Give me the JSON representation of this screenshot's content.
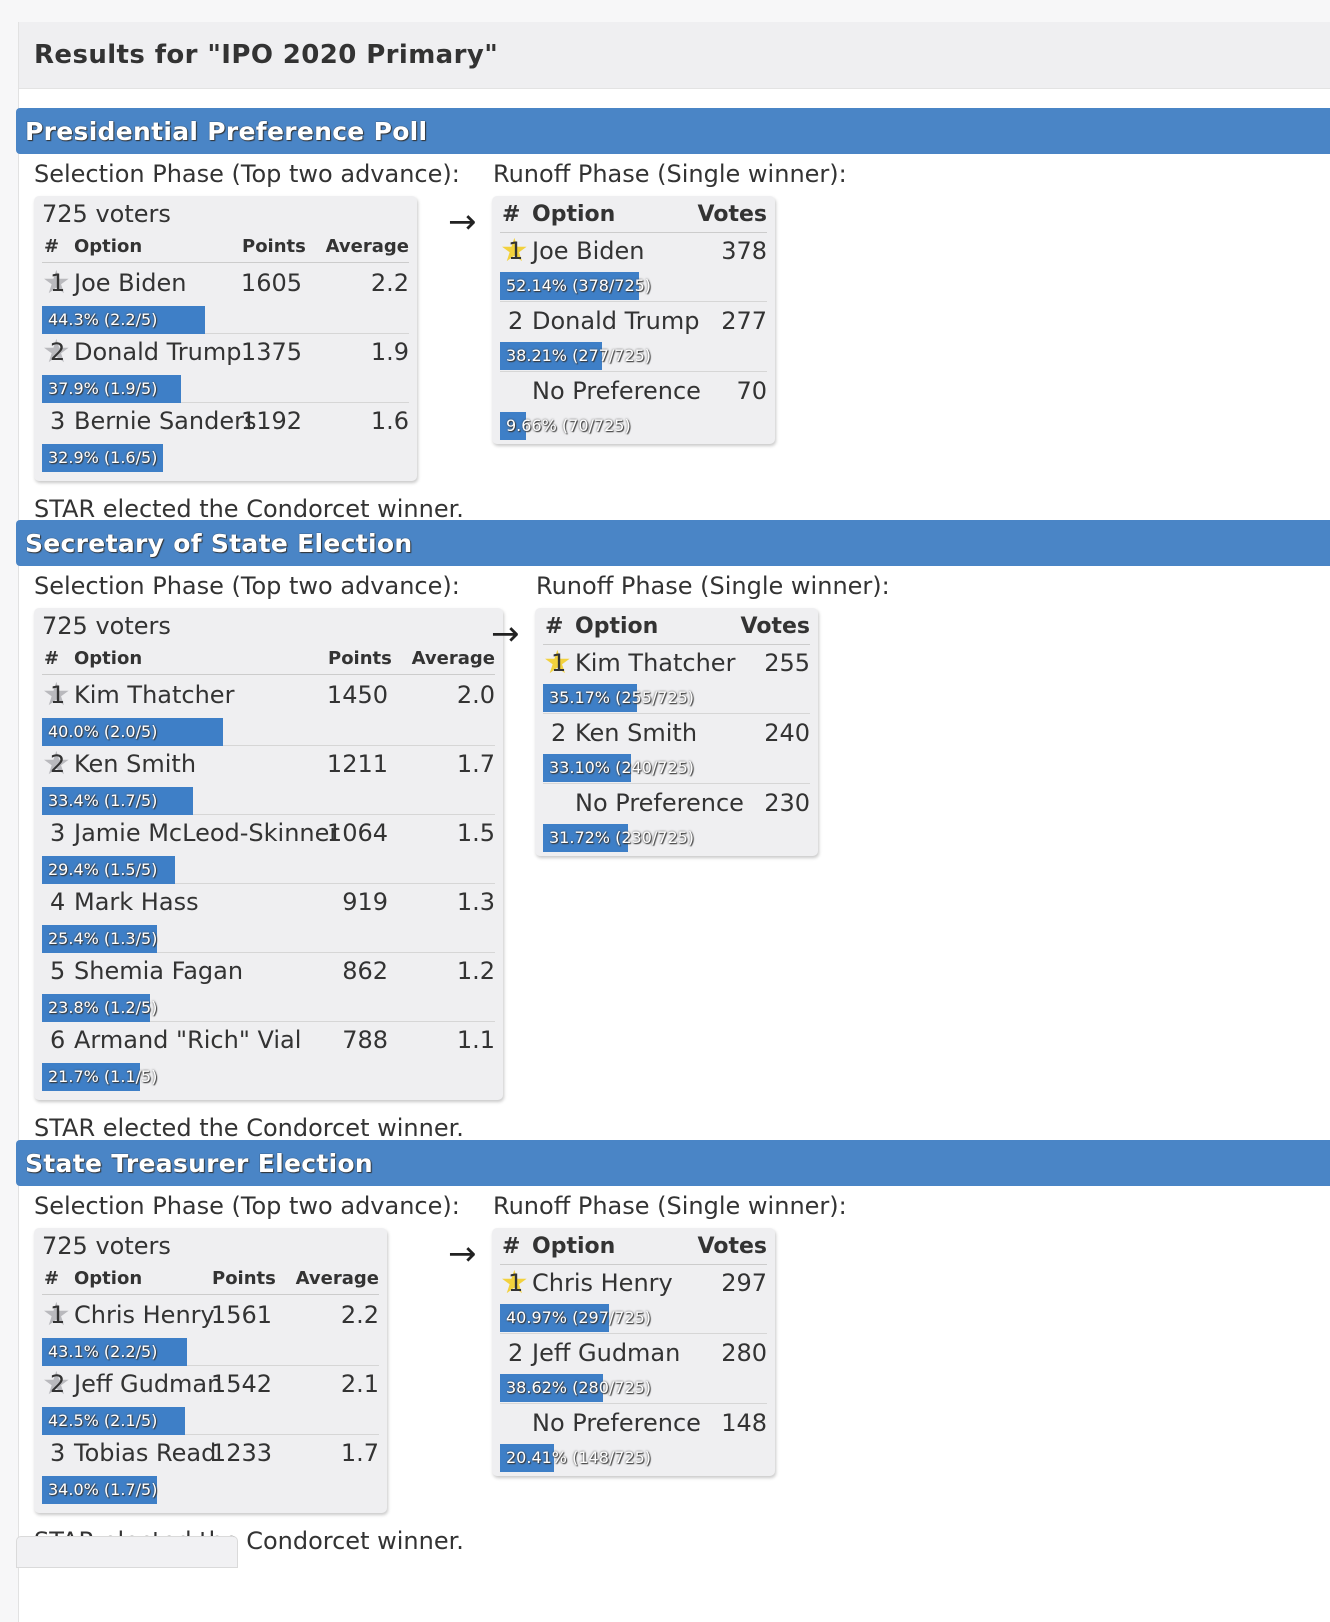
{
  "page": {
    "title": "Results for \"IPO 2020 Primary\""
  },
  "elections": [
    {
      "name": "Presidential Preference Poll",
      "selection_label": "Selection Phase (Top two advance):",
      "runoff_label": "Runoff Phase (Single winner):",
      "voters_text": "725 voters",
      "headers": {
        "rank": "#",
        "option": "Option",
        "points": "Points",
        "average": "Average"
      },
      "candidates": [
        {
          "rank": "1",
          "name": "Joe Biden",
          "points": "1605",
          "average": "2.2",
          "bar_text": "44.3% (2.2/5)",
          "pct": 44.3
        },
        {
          "rank": "2",
          "name": "Donald Trump",
          "points": "1375",
          "average": "1.9",
          "bar_text": "37.9% (1.9/5)",
          "pct": 37.9
        },
        {
          "rank": "3",
          "name": "Bernie Sanders",
          "points": "1192",
          "average": "1.6",
          "bar_text": "32.9% (1.6/5)",
          "pct": 32.9
        }
      ],
      "runoff_headers": {
        "rank": "#",
        "option": "Option",
        "votes": "Votes"
      },
      "runoff": [
        {
          "rank": "1",
          "name": "Joe Biden",
          "votes": "378",
          "bar_text": "52.14% (378/725)",
          "pct": 52.14
        },
        {
          "rank": "2",
          "name": "Donald Trump",
          "votes": "277",
          "bar_text": "38.21% (277/725)",
          "pct": 38.21
        },
        {
          "rank": "",
          "name": "No Preference",
          "votes": "70",
          "bar_text": "9.66% (70/725)",
          "pct": 9.66
        }
      ],
      "verdict": "STAR elected the Condorcet winner."
    },
    {
      "name": "Secretary of State Election",
      "selection_label": "Selection Phase (Top two advance):",
      "runoff_label": "Runoff Phase (Single winner):",
      "voters_text": "725 voters",
      "headers": {
        "rank": "#",
        "option": "Option",
        "points": "Points",
        "average": "Average"
      },
      "candidates": [
        {
          "rank": "1",
          "name": "Kim Thatcher",
          "points": "1450",
          "average": "2.0",
          "bar_text": "40.0% (2.0/5)",
          "pct": 40.0
        },
        {
          "rank": "2",
          "name": "Ken Smith",
          "points": "1211",
          "average": "1.7",
          "bar_text": "33.4% (1.7/5)",
          "pct": 33.4
        },
        {
          "rank": "3",
          "name": "Jamie McLeod-Skinner",
          "points": "1064",
          "average": "1.5",
          "bar_text": "29.4% (1.5/5)",
          "pct": 29.4
        },
        {
          "rank": "4",
          "name": "Mark Hass",
          "points": "919",
          "average": "1.3",
          "bar_text": "25.4% (1.3/5)",
          "pct": 25.4
        },
        {
          "rank": "5",
          "name": "Shemia Fagan",
          "points": "862",
          "average": "1.2",
          "bar_text": "23.8% (1.2/5)",
          "pct": 23.8
        },
        {
          "rank": "6",
          "name": "Armand \"Rich\" Vial",
          "points": "788",
          "average": "1.1",
          "bar_text": "21.7% (1.1/5)",
          "pct": 21.7
        }
      ],
      "runoff_headers": {
        "rank": "#",
        "option": "Option",
        "votes": "Votes"
      },
      "runoff": [
        {
          "rank": "1",
          "name": "Kim Thatcher",
          "votes": "255",
          "bar_text": "35.17% (255/725)",
          "pct": 35.17
        },
        {
          "rank": "2",
          "name": "Ken Smith",
          "votes": "240",
          "bar_text": "33.10% (240/725)",
          "pct": 33.1
        },
        {
          "rank": "",
          "name": "No Preference",
          "votes": "230",
          "bar_text": "31.72% (230/725)",
          "pct": 31.72
        }
      ],
      "verdict": "STAR elected the Condorcet winner."
    },
    {
      "name": "State Treasurer Election",
      "selection_label": "Selection Phase (Top two advance):",
      "runoff_label": "Runoff Phase (Single winner):",
      "voters_text": "725 voters",
      "headers": {
        "rank": "#",
        "option": "Option",
        "points": "Points",
        "average": "Average"
      },
      "candidates": [
        {
          "rank": "1",
          "name": "Chris Henry",
          "points": "1561",
          "average": "2.2",
          "bar_text": "43.1% (2.2/5)",
          "pct": 43.1
        },
        {
          "rank": "2",
          "name": "Jeff Gudman",
          "points": "1542",
          "average": "2.1",
          "bar_text": "42.5% (2.1/5)",
          "pct": 42.5
        },
        {
          "rank": "3",
          "name": "Tobias Read",
          "points": "1233",
          "average": "1.7",
          "bar_text": "34.0% (1.7/5)",
          "pct": 34.0
        }
      ],
      "runoff_headers": {
        "rank": "#",
        "option": "Option",
        "votes": "Votes"
      },
      "runoff": [
        {
          "rank": "1",
          "name": "Chris Henry",
          "votes": "297",
          "bar_text": "40.97% (297/725)",
          "pct": 40.97
        },
        {
          "rank": "2",
          "name": "Jeff Gudman",
          "votes": "280",
          "bar_text": "38.62% (280/725)",
          "pct": 38.62
        },
        {
          "rank": "",
          "name": "No Preference",
          "votes": "148",
          "bar_text": "20.41% (148/725)",
          "pct": 20.41
        }
      ],
      "verdict": "STAR elected the Condorcet winner."
    }
  ],
  "arrow_glyph": "→",
  "colors": {
    "banner": "#4a85c6",
    "bar": "#3e7fc7",
    "star_gold": "#f2d13d",
    "star_gray": "#b9b9bd"
  }
}
